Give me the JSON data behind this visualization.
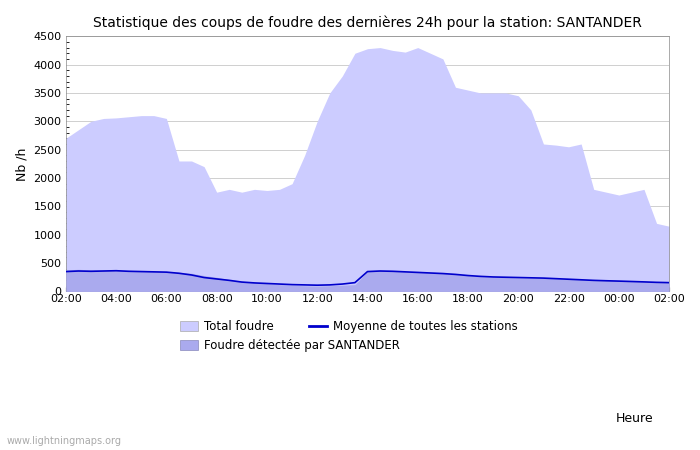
{
  "title": "Statistique des coups de foudre des dernières 24h pour la station: SANTANDER",
  "xlabel": "Heure",
  "ylabel": "Nb /h",
  "watermark": "www.lightningmaps.org",
  "x_ticks": [
    "02:00",
    "04:00",
    "06:00",
    "08:00",
    "10:00",
    "12:00",
    "14:00",
    "16:00",
    "18:00",
    "20:00",
    "22:00",
    "00:00",
    "02:00"
  ],
  "ylim": [
    0,
    4500
  ],
  "yticks": [
    0,
    500,
    1000,
    1500,
    2000,
    2500,
    3000,
    3500,
    4000,
    4500
  ],
  "bg_color": "#ffffff",
  "grid_color": "#c8c8c8",
  "total_color": "#ccccff",
  "station_color": "#aaaaee",
  "mean_line_color": "#0000cc",
  "total_foudre": [
    2700,
    2850,
    3000,
    3050,
    3060,
    3080,
    3100,
    3100,
    3050,
    2300,
    2300,
    2200,
    1750,
    1800,
    1750,
    1800,
    1780,
    1800,
    1900,
    2400,
    3000,
    3500,
    3800,
    4200,
    4280,
    4300,
    4250,
    4220,
    4300,
    4200,
    4100,
    3600,
    3550,
    3500,
    3500,
    3500,
    3450,
    3200,
    2600,
    2580,
    2550,
    2600,
    1800,
    1750,
    1700,
    1750,
    1800,
    1200,
    1150
  ],
  "station_foudre": [
    380,
    390,
    380,
    375,
    375,
    370,
    365,
    360,
    350,
    340,
    320,
    280,
    250,
    210,
    180,
    160,
    140,
    120,
    110,
    100,
    95,
    100,
    110,
    120,
    350,
    370,
    360,
    350,
    340,
    330,
    320,
    300,
    280,
    260,
    250,
    245,
    240,
    235,
    230,
    225,
    220,
    215,
    205,
    198,
    192,
    185,
    178,
    170,
    165
  ],
  "mean_line": [
    350,
    360,
    355,
    360,
    365,
    355,
    350,
    345,
    340,
    320,
    290,
    245,
    220,
    195,
    165,
    150,
    140,
    130,
    120,
    115,
    110,
    115,
    130,
    155,
    350,
    360,
    355,
    345,
    335,
    325,
    315,
    300,
    280,
    265,
    255,
    250,
    245,
    240,
    235,
    225,
    215,
    205,
    195,
    188,
    182,
    175,
    168,
    160,
    155
  ]
}
